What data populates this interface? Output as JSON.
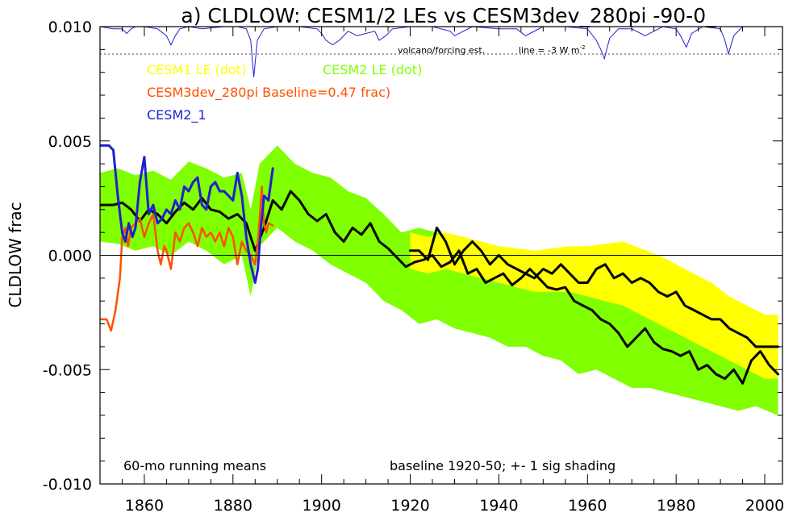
{
  "chart_data": {
    "type": "line",
    "title": "a) CLDLOW: CESM1/2 LEs vs CESM3dev_280pi -90-0_",
    "ylabel": "CLDLOW frac",
    "xlabel": "",
    "xlim": [
      1850,
      2004
    ],
    "ylim": [
      -0.01,
      0.01
    ],
    "xticks": [
      1860,
      1880,
      1900,
      1920,
      1940,
      1960,
      1980,
      2000
    ],
    "yticks": [
      -0.01,
      -0.005,
      0.0,
      0.005,
      0.01
    ],
    "ytick_labels": [
      "-0.010",
      "-0.005",
      "0.000",
      "0.005",
      "0.010"
    ],
    "xtick_labels": [
      "1860",
      "1880",
      "1900",
      "1920",
      "1940",
      "1960",
      "1980",
      "2000"
    ],
    "zero_line": 0.0,
    "grid": false,
    "legend": [
      {
        "text": "CESM1 LE (dot)",
        "color": "#ffff00"
      },
      {
        "text": "CESM2 LE (dot)",
        "color": "#80ff00"
      },
      {
        "text": "CESM3dev_280pi Baseline=0.47 frac)",
        "color": "#ff5000"
      },
      {
        "text": "CESM2_1",
        "color": "#2020d0"
      }
    ],
    "annotations": {
      "volcano_label": "volcano/forcing est.",
      "line_label": "line = -3 W m",
      "line_label_sup": "-2",
      "bottom_left": "60-mo running means",
      "bottom_right": "baseline 1920-50; +- 1 sig shading"
    },
    "volcano_ref_level": 0.0088,
    "volcano_trace": {
      "baseline": 0.01,
      "x": [
        1850,
        1853,
        1855,
        1856,
        1857,
        1858,
        1860,
        1863,
        1865,
        1866,
        1867,
        1868,
        1870,
        1873,
        1878,
        1881,
        1883,
        1884,
        1884.7,
        1885.5,
        1887,
        1890,
        1895,
        1899,
        1900,
        1901,
        1902.5,
        1904,
        1906,
        1908,
        1912,
        1913,
        1914.5,
        1916,
        1920,
        1925,
        1929,
        1930,
        1932,
        1934,
        1940,
        1944,
        1946,
        1947,
        1950,
        1955,
        1960,
        1962,
        1963,
        1963.8,
        1965,
        1967,
        1970,
        1973,
        1975,
        1977,
        1980,
        1981,
        1982.3,
        1983.5,
        1986,
        1990,
        1991,
        1991.8,
        1993,
        1995,
        2000,
        2004
      ],
      "y": [
        0.01,
        0.0099,
        0.0099,
        0.0097,
        0.0099,
        0.01,
        0.01,
        0.0099,
        0.0096,
        0.0092,
        0.0096,
        0.0099,
        0.01,
        0.0099,
        0.01,
        0.01,
        0.0099,
        0.0094,
        0.0078,
        0.0094,
        0.0099,
        0.01,
        0.01,
        0.0099,
        0.0097,
        0.0094,
        0.0092,
        0.0094,
        0.0098,
        0.0096,
        0.0098,
        0.0094,
        0.0096,
        0.0099,
        0.01,
        0.01,
        0.0098,
        0.0096,
        0.0098,
        0.01,
        0.0099,
        0.0099,
        0.0096,
        0.0097,
        0.01,
        0.01,
        0.0099,
        0.0094,
        0.009,
        0.0086,
        0.0095,
        0.0099,
        0.0099,
        0.0096,
        0.0098,
        0.01,
        0.0099,
        0.0096,
        0.0091,
        0.0097,
        0.01,
        0.0099,
        0.0094,
        0.0088,
        0.0096,
        0.01,
        0.01,
        0.01
      ]
    },
    "series": [
      {
        "name": "CESM2 LE (dot)",
        "style": "band",
        "color": "#80ff00",
        "x": [
          1850,
          1854,
          1858,
          1862,
          1866,
          1870,
          1874,
          1878,
          1882,
          1884,
          1886,
          1890,
          1894,
          1898,
          1902,
          1906,
          1910,
          1914,
          1918,
          1922,
          1926,
          1930,
          1934,
          1938,
          1942,
          1946,
          1950,
          1954,
          1958,
          1962,
          1966,
          1970,
          1974,
          1978,
          1982,
          1986,
          1990,
          1994,
          1998,
          2003
        ],
        "upper": [
          0.0036,
          0.0038,
          0.0035,
          0.0037,
          0.0033,
          0.0041,
          0.0038,
          0.0034,
          0.0036,
          0.002,
          0.004,
          0.0048,
          0.004,
          0.0036,
          0.0034,
          0.0028,
          0.0025,
          0.0018,
          0.001,
          0.0012,
          0.001,
          0.0008,
          0.0006,
          0.0002,
          0.0002,
          -0.0002,
          -0.0002,
          -0.0004,
          -0.0006,
          -0.0006,
          -0.0008,
          -0.0014,
          -0.0015,
          -0.0016,
          -0.002,
          -0.0022,
          -0.0028,
          -0.0032,
          -0.0036,
          -0.004
        ],
        "lower": [
          0.0006,
          0.0005,
          0.0002,
          0.0004,
          0.0,
          0.0006,
          0.0002,
          -0.0004,
          0.0,
          -0.0018,
          0.0004,
          0.0012,
          0.0006,
          0.0002,
          -0.0004,
          -0.0008,
          -0.0012,
          -0.002,
          -0.0024,
          -0.003,
          -0.0028,
          -0.0032,
          -0.0034,
          -0.0036,
          -0.004,
          -0.004,
          -0.0044,
          -0.0046,
          -0.0052,
          -0.005,
          -0.0054,
          -0.0058,
          -0.0058,
          -0.006,
          -0.0062,
          -0.0064,
          -0.0066,
          -0.0068,
          -0.0066,
          -0.007
        ]
      },
      {
        "name": "CESM1 LE (dot)",
        "style": "band",
        "color": "#ffff00",
        "x": [
          1920,
          1924,
          1928,
          1932,
          1936,
          1940,
          1944,
          1948,
          1952,
          1956,
          1960,
          1964,
          1968,
          1972,
          1976,
          1980,
          1984,
          1988,
          1992,
          1996,
          2000,
          2003
        ],
        "upper": [
          0.001,
          0.0008,
          0.001,
          0.0008,
          0.0006,
          0.0004,
          0.0003,
          0.0002,
          0.0003,
          0.0004,
          0.0004,
          0.0005,
          0.0006,
          0.0003,
          0.0,
          -0.0004,
          -0.0008,
          -0.0012,
          -0.0018,
          -0.0022,
          -0.0026,
          -0.0026
        ],
        "lower": [
          -0.0006,
          -0.0008,
          -0.0006,
          -0.0008,
          -0.001,
          -0.0012,
          -0.0014,
          -0.0016,
          -0.0016,
          -0.0016,
          -0.0018,
          -0.002,
          -0.0022,
          -0.0026,
          -0.003,
          -0.0034,
          -0.0038,
          -0.0042,
          -0.0046,
          -0.005,
          -0.0054,
          -0.0054
        ]
      },
      {
        "name": "CESM2 LE (dot)",
        "style": "line",
        "color": "#000000",
        "width": 3,
        "x": [
          1850,
          1853,
          1855,
          1857,
          1859,
          1861,
          1863,
          1865,
          1867,
          1869,
          1871,
          1873,
          1875,
          1877,
          1879,
          1881,
          1883,
          1885,
          1887,
          1889,
          1891,
          1893,
          1895,
          1897,
          1899,
          1901,
          1903,
          1905,
          1907,
          1909,
          1911,
          1913,
          1915,
          1917,
          1919,
          1921,
          1923,
          1925,
          1927,
          1929,
          1931,
          1933,
          1935,
          1937,
          1939,
          1941,
          1943,
          1945,
          1947,
          1949,
          1951,
          1953,
          1955,
          1957,
          1959,
          1961,
          1963,
          1965,
          1967,
          1969,
          1971,
          1973,
          1975,
          1977,
          1979,
          1981,
          1983,
          1985,
          1987,
          1989,
          1991,
          1993,
          1995,
          1997,
          1999,
          2001,
          2003
        ],
        "y": [
          0.0022,
          0.0022,
          0.0023,
          0.002,
          0.0015,
          0.002,
          0.0018,
          0.0014,
          0.0019,
          0.0023,
          0.002,
          0.0025,
          0.002,
          0.0019,
          0.0016,
          0.0018,
          0.0014,
          0.0002,
          0.0012,
          0.0024,
          0.002,
          0.0028,
          0.0024,
          0.0018,
          0.0015,
          0.0018,
          0.001,
          0.0006,
          0.0012,
          0.0009,
          0.0014,
          0.0006,
          0.0003,
          -0.0001,
          -0.0005,
          -0.0003,
          -0.0002,
          0.0,
          -0.0005,
          -0.0003,
          0.0002,
          -0.0008,
          -0.0006,
          -0.0012,
          -0.001,
          -0.0008,
          -0.0013,
          -0.001,
          -0.0006,
          -0.001,
          -0.0014,
          -0.0015,
          -0.0014,
          -0.002,
          -0.0022,
          -0.0024,
          -0.0028,
          -0.003,
          -0.0034,
          -0.004,
          -0.0036,
          -0.0032,
          -0.0038,
          -0.0041,
          -0.0042,
          -0.0044,
          -0.0042,
          -0.005,
          -0.0048,
          -0.0052,
          -0.0054,
          -0.005,
          -0.0056,
          -0.0046,
          -0.0042,
          -0.0048,
          -0.0052
        ]
      },
      {
        "name": "CESM1 LE (dot)",
        "style": "line",
        "color": "#000000",
        "width": 3,
        "x": [
          1920,
          1922,
          1924,
          1926,
          1928,
          1930,
          1932,
          1934,
          1936,
          1938,
          1940,
          1942,
          1944,
          1946,
          1948,
          1950,
          1952,
          1954,
          1956,
          1958,
          1960,
          1962,
          1964,
          1966,
          1968,
          1970,
          1972,
          1974,
          1976,
          1978,
          1980,
          1982,
          1984,
          1986,
          1988,
          1990,
          1992,
          1994,
          1996,
          1998,
          2000,
          2003
        ],
        "y": [
          0.0002,
          0.0002,
          -0.0002,
          0.0012,
          0.0006,
          -0.0004,
          0.0002,
          0.0006,
          0.0002,
          -0.0004,
          0.0,
          -0.0004,
          -0.0006,
          -0.0008,
          -0.001,
          -0.0006,
          -0.0008,
          -0.0004,
          -0.0008,
          -0.0012,
          -0.0012,
          -0.0006,
          -0.0004,
          -0.001,
          -0.0008,
          -0.0012,
          -0.001,
          -0.0012,
          -0.0016,
          -0.0018,
          -0.0016,
          -0.0022,
          -0.0024,
          -0.0026,
          -0.0028,
          -0.0028,
          -0.0032,
          -0.0034,
          -0.0036,
          -0.004,
          -0.004,
          -0.004
        ]
      },
      {
        "name": "CESM3dev_280pi Baseline=0.47 frac)",
        "style": "line",
        "color": "#ff5000",
        "width": 2.5,
        "x": [
          1850,
          1851.5,
          1852.5,
          1853.5,
          1854.5,
          1855,
          1855.7,
          1856.3,
          1857,
          1858,
          1859,
          1860,
          1861,
          1862,
          1863,
          1863.7,
          1864.5,
          1865,
          1866,
          1867,
          1868,
          1869,
          1870,
          1871,
          1872,
          1873,
          1874,
          1875,
          1876,
          1877,
          1878,
          1879,
          1880,
          1881,
          1882,
          1883,
          1884,
          1885,
          1885.8,
          1886.5,
          1887,
          1887.5,
          1888,
          1889
        ],
        "y": [
          -0.0028,
          -0.0028,
          -0.0033,
          -0.0024,
          -0.001,
          0.0008,
          0.0012,
          0.0004,
          0.0012,
          0.0014,
          0.0016,
          0.0008,
          0.0014,
          0.0018,
          0.0002,
          -0.0004,
          0.0004,
          0.0002,
          -0.0006,
          0.001,
          0.0006,
          0.0012,
          0.0014,
          0.001,
          0.0004,
          0.0012,
          0.0008,
          0.001,
          0.0006,
          0.001,
          0.0004,
          0.0012,
          0.0008,
          -0.0004,
          0.0006,
          0.0002,
          0.0,
          -0.0004,
          0.001,
          0.003,
          0.0014,
          0.001,
          0.0014,
          0.0013
        ]
      },
      {
        "name": "CESM2_1",
        "style": "line",
        "color": "#2020d0",
        "width": 3,
        "x": [
          1850,
          1852,
          1853,
          1854,
          1855,
          1855.7,
          1856.5,
          1857.3,
          1858,
          1859,
          1860,
          1861,
          1862,
          1863,
          1864,
          1865,
          1866,
          1867,
          1868,
          1869,
          1870,
          1871,
          1872,
          1873,
          1874,
          1875,
          1876,
          1877,
          1878,
          1879,
          1880,
          1881,
          1882,
          1883,
          1884,
          1885,
          1885.6,
          1886.3,
          1887,
          1888,
          1889
        ],
        "y": [
          0.0048,
          0.0048,
          0.0046,
          0.0026,
          0.001,
          0.0006,
          0.0014,
          0.0008,
          0.0012,
          0.0032,
          0.0043,
          0.0018,
          0.0022,
          0.0014,
          0.0016,
          0.002,
          0.0018,
          0.0024,
          0.002,
          0.003,
          0.0028,
          0.0032,
          0.0034,
          0.0022,
          0.002,
          0.003,
          0.0032,
          0.0028,
          0.0028,
          0.0026,
          0.0024,
          0.0036,
          0.0026,
          0.0008,
          -0.0004,
          -0.0012,
          -0.0006,
          0.0012,
          0.0026,
          0.0024,
          0.0038
        ]
      }
    ]
  }
}
